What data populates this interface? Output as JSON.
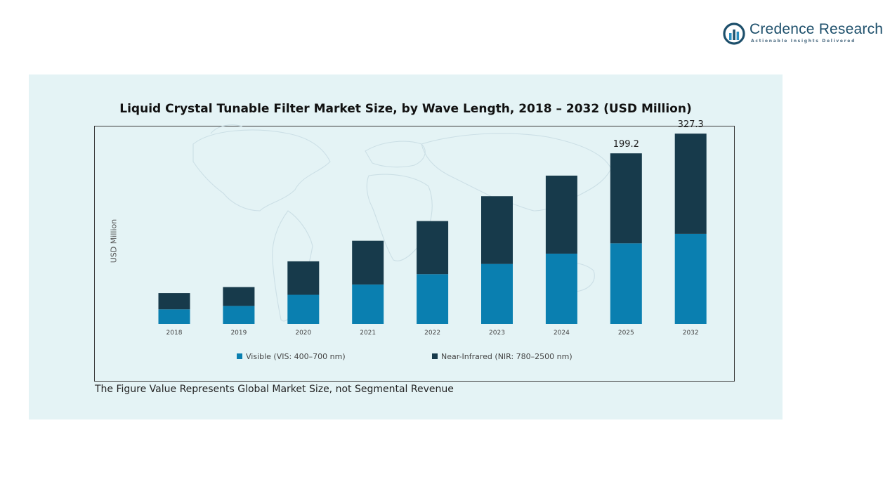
{
  "brand": {
    "name": "Credence Research",
    "tagline": "Actionable Insights Delivered",
    "logo_icon": "bar-chart-circle-logo",
    "colors": {
      "primary": "#1d4f6b",
      "accent": "#2b8fc0"
    }
  },
  "footnote": "The Figure Value Represents Global Market Size, not Segmental Revenue",
  "chart_data": {
    "type": "bar",
    "stacked": true,
    "title": "Liquid Crystal Tunable Filter Market Size, by Wave Length, 2018 – 2032 (USD Million)",
    "xlabel": "",
    "ylabel": "USD Million",
    "categories": [
      "2018",
      "2019",
      "2020",
      "2021",
      "2022",
      "2023",
      "2024",
      "2025",
      "2032"
    ],
    "series": [
      {
        "name": "Visible (VIS: 400–700 nm)",
        "color": "#0a7fb0",
        "values": [
          17,
          21,
          34,
          46,
          58,
          70,
          82,
          94,
          105
        ]
      },
      {
        "name": "Near-Infrared (NIR: 780–2500 nm)",
        "color": "#173a4b",
        "values": [
          19,
          22,
          39,
          51,
          62,
          79,
          91,
          105,
          117
        ]
      }
    ],
    "totals_labels": [
      {
        "category": "2025",
        "text": "199.2"
      },
      {
        "category": "2032",
        "text": "327.3"
      }
    ],
    "ylim": [
      0,
      250
    ],
    "grid": false,
    "legend_position": "bottom",
    "background": "faint world map"
  }
}
